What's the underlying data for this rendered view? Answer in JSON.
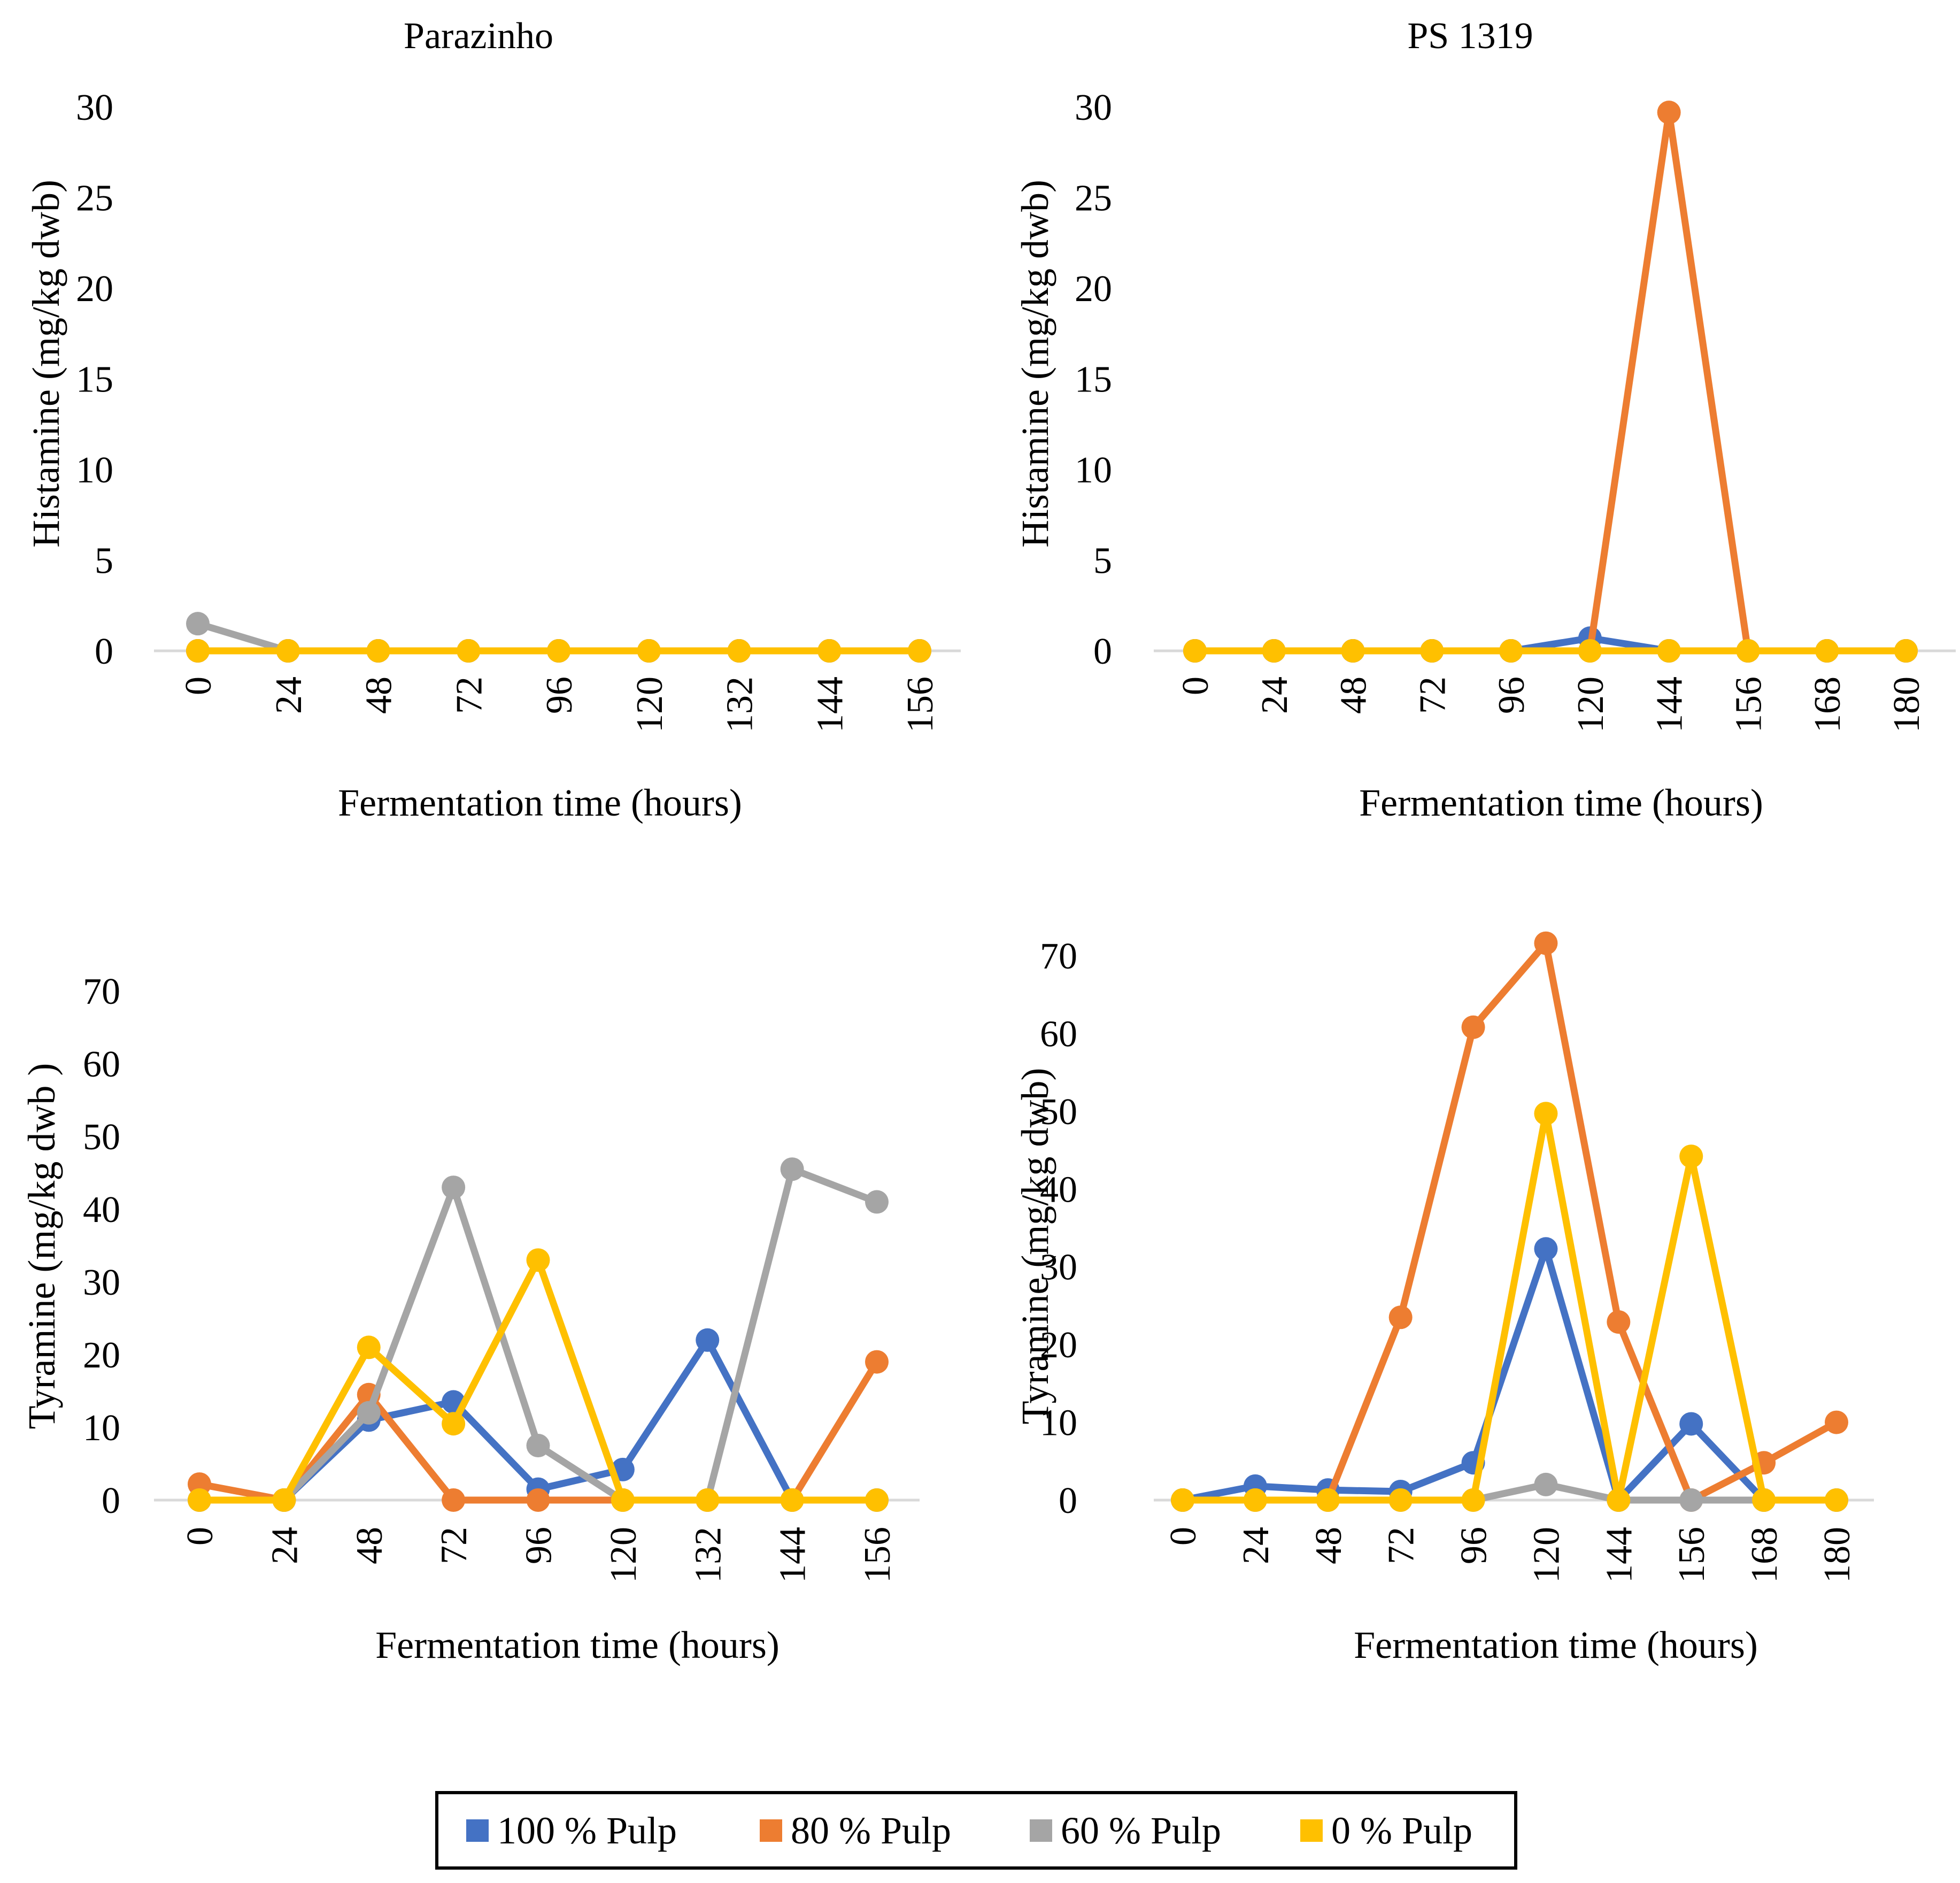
{
  "figure": {
    "legend": [
      {
        "name": "100 % Pulp",
        "color": "#4472C4"
      },
      {
        "name": "80 % Pulp",
        "color": "#ED7D31"
      },
      {
        "name": "60 % Pulp",
        "color": "#A5A5A5"
      },
      {
        "name": "0 % Pulp",
        "color": "#FFC000"
      }
    ]
  },
  "chart_data": [
    {
      "id": "histamine-parazinho",
      "type": "line",
      "title": "Parazinho",
      "xlabel": "Fermentation time (hours)",
      "ylabel": "Histamine (mg/kg dwb)",
      "ylim": [
        0,
        30
      ],
      "yticks": [
        0,
        5,
        10,
        15,
        20,
        25,
        30
      ],
      "categories": [
        "0",
        "24",
        "48",
        "72",
        "96",
        "120",
        "132",
        "144",
        "156"
      ],
      "series": [
        {
          "name": "100 % Pulp",
          "color": "#4472C4",
          "values": [
            0,
            0,
            0,
            0,
            0,
            0,
            0,
            0,
            0
          ]
        },
        {
          "name": "80 % Pulp",
          "color": "#ED7D31",
          "values": [
            0,
            0,
            0,
            0,
            0,
            0,
            0,
            0,
            0
          ]
        },
        {
          "name": "60 % Pulp",
          "color": "#A5A5A5",
          "values": [
            1.5,
            0,
            0,
            0,
            0,
            0,
            0,
            0,
            0
          ]
        },
        {
          "name": "0 % Pulp",
          "color": "#FFC000",
          "values": [
            0,
            0,
            0,
            0,
            0,
            0,
            0,
            0,
            0
          ]
        }
      ]
    },
    {
      "id": "histamine-ps1319",
      "type": "line",
      "title": "PS 1319",
      "xlabel": "Fermentation time (hours)",
      "ylabel": "Histamine (mg/kg dwb)",
      "ylim": [
        0,
        30
      ],
      "yticks": [
        0,
        5,
        10,
        15,
        20,
        25,
        30
      ],
      "categories": [
        "0",
        "24",
        "48",
        "72",
        "96",
        "120",
        "144",
        "156",
        "168",
        "180"
      ],
      "series": [
        {
          "name": "100 % Pulp",
          "color": "#4472C4",
          "values": [
            0,
            0,
            0,
            0,
            0,
            0.7,
            0,
            0,
            0,
            0
          ]
        },
        {
          "name": "80 % Pulp",
          "color": "#ED7D31",
          "values": [
            0,
            0,
            0,
            0,
            0,
            0,
            29.7,
            0,
            0,
            0
          ]
        },
        {
          "name": "60 % Pulp",
          "color": "#A5A5A5",
          "values": [
            0,
            0,
            0,
            0,
            0,
            0,
            0,
            0,
            0,
            0
          ]
        },
        {
          "name": "0 % Pulp",
          "color": "#FFC000",
          "values": [
            0,
            0,
            0,
            0,
            0,
            0,
            0,
            0,
            0,
            0
          ]
        }
      ]
    },
    {
      "id": "tyramine-parazinho",
      "type": "line",
      "title": "",
      "xlabel": "Fermentation time (hours)",
      "ylabel": "Tyramine (mg/kg dwb )",
      "ylim": [
        0,
        70
      ],
      "yticks": [
        0,
        10,
        20,
        30,
        40,
        50,
        60,
        70
      ],
      "categories": [
        "0",
        "24",
        "48",
        "72",
        "96",
        "120",
        "132",
        "144",
        "156"
      ],
      "series": [
        {
          "name": "100 % Pulp",
          "color": "#4472C4",
          "values": [
            0,
            0,
            11,
            13.5,
            1.5,
            4.2,
            22,
            0,
            0
          ]
        },
        {
          "name": "80 % Pulp",
          "color": "#ED7D31",
          "values": [
            2.2,
            0,
            14.5,
            0,
            0,
            0,
            0,
            0,
            19
          ]
        },
        {
          "name": "60 % Pulp",
          "color": "#A5A5A5",
          "values": [
            0,
            0,
            12,
            43,
            7.5,
            0,
            0,
            45.5,
            41
          ]
        },
        {
          "name": "0 % Pulp",
          "color": "#FFC000",
          "values": [
            0,
            0,
            21,
            10.5,
            33,
            0,
            0,
            0,
            0
          ]
        }
      ]
    },
    {
      "id": "tyramine-ps1319",
      "type": "line",
      "title": "",
      "xlabel": "Fermentation time (hours)",
      "ylabel": "Tyramine (mg/kg dwb)",
      "ylim": [
        0,
        70
      ],
      "yticks": [
        0,
        10,
        20,
        30,
        40,
        50,
        60,
        70
      ],
      "categories": [
        "0",
        "24",
        "48",
        "72",
        "96",
        "120",
        "144",
        "156",
        "168",
        "180"
      ],
      "series": [
        {
          "name": "100 % Pulp",
          "color": "#4472C4",
          "values": [
            0,
            1.8,
            1.3,
            1.1,
            4.8,
            32.3,
            0,
            9.8,
            0,
            0
          ]
        },
        {
          "name": "80 % Pulp",
          "color": "#ED7D31",
          "values": [
            0,
            0,
            0,
            23.5,
            60.8,
            71.6,
            22.9,
            0,
            4.8,
            10
          ]
        },
        {
          "name": "60 % Pulp",
          "color": "#A5A5A5",
          "values": [
            0,
            0,
            0,
            0,
            0,
            2,
            0,
            0,
            0,
            0
          ]
        },
        {
          "name": "0 % Pulp",
          "color": "#FFC000",
          "values": [
            0,
            0,
            0,
            0,
            0,
            49.7,
            0,
            44.2,
            0,
            0
          ]
        }
      ]
    }
  ]
}
